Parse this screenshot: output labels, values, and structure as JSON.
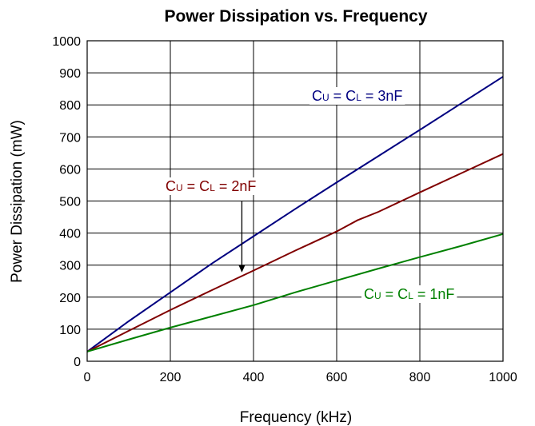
{
  "chart_data": {
    "type": "line",
    "title": "Power Dissipation vs. Frequency",
    "xlabel": "Frequency (kHz)",
    "ylabel": "Power Dissipation (mW)",
    "xlim": [
      0,
      1000
    ],
    "ylim": [
      0,
      1000
    ],
    "x_ticks": [
      0,
      200,
      400,
      600,
      800,
      1000
    ],
    "y_ticks": [
      0,
      100,
      200,
      300,
      400,
      500,
      600,
      700,
      800,
      900,
      1000
    ],
    "grid": true,
    "series": [
      {
        "label": {
          "prefix": "C",
          "sub1": "U",
          "mid": " = C",
          "sub2": "L",
          "suffix": " = 3nF"
        },
        "color": "#000080",
        "x": [
          0,
          100,
          200,
          300,
          400,
          500,
          600,
          700,
          800,
          900,
          1000
        ],
        "y": [
          30,
          125,
          215,
          305,
          390,
          475,
          558,
          640,
          722,
          805,
          888
        ]
      },
      {
        "label": {
          "prefix": "C",
          "sub1": "U",
          "mid": " = C",
          "sub2": "L",
          "suffix": " = 2nF"
        },
        "color": "#800000",
        "x": [
          0,
          100,
          200,
          300,
          400,
          500,
          600,
          650,
          700,
          800,
          900,
          1000
        ],
        "y": [
          30,
          95,
          160,
          222,
          283,
          345,
          405,
          440,
          466,
          527,
          587,
          647
        ]
      },
      {
        "label": {
          "prefix": "C",
          "sub1": "U",
          "mid": " = C",
          "sub2": "L",
          "suffix": " = 1nF"
        },
        "color": "#008000",
        "x": [
          0,
          100,
          200,
          300,
          400,
          500,
          600,
          700,
          800,
          900,
          1000
        ],
        "y": [
          30,
          68,
          105,
          140,
          175,
          215,
          252,
          289,
          325,
          360,
          397
        ]
      }
    ],
    "annotations": [
      {
        "series_index": 1,
        "arrow_to": {
          "x": 372,
          "y": 272
        },
        "arrow_from_y": 500
      }
    ]
  }
}
